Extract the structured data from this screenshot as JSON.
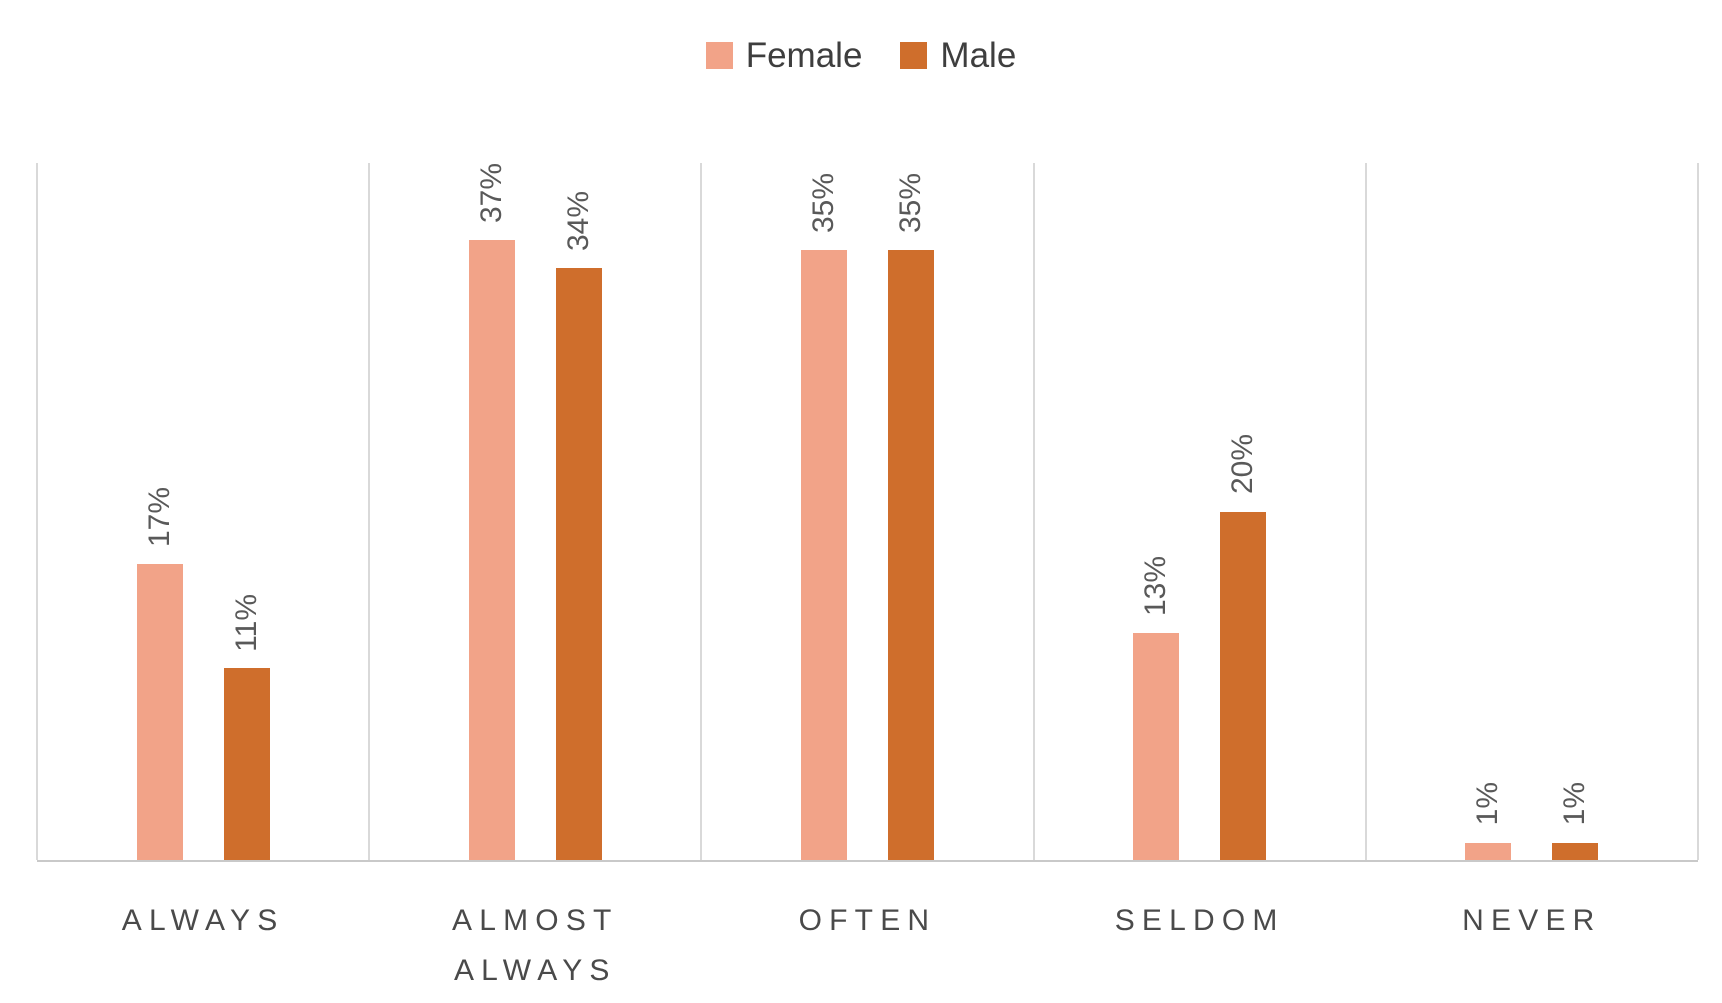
{
  "chart_data": {
    "type": "bar",
    "title": "",
    "categories": [
      "ALWAYS",
      "ALMOST ALWAYS",
      "OFTEN",
      "SELDOM",
      "NEVER"
    ],
    "series": [
      {
        "name": "Female",
        "color": "#f2a388",
        "values": [
          17,
          37,
          35,
          13,
          1
        ]
      },
      {
        "name": "Male",
        "color": "#cf6e2c",
        "values": [
          11,
          34,
          35,
          20,
          1
        ]
      }
    ],
    "value_suffix": "%",
    "ylim": [
      0,
      40
    ],
    "xlabel": "",
    "ylabel": "",
    "legend_position": "top-center",
    "grid": "vertical category boundary lines only",
    "data_labels": {
      "rotation": "vertical-bottom-to-top",
      "color": "#595959"
    },
    "colors": {
      "gridline": "#d9d9d9",
      "baseline": "#c9c9c9",
      "category_label": "#4a4a4a",
      "legend_text": "#3e3e3e",
      "background": "#ffffff"
    }
  }
}
